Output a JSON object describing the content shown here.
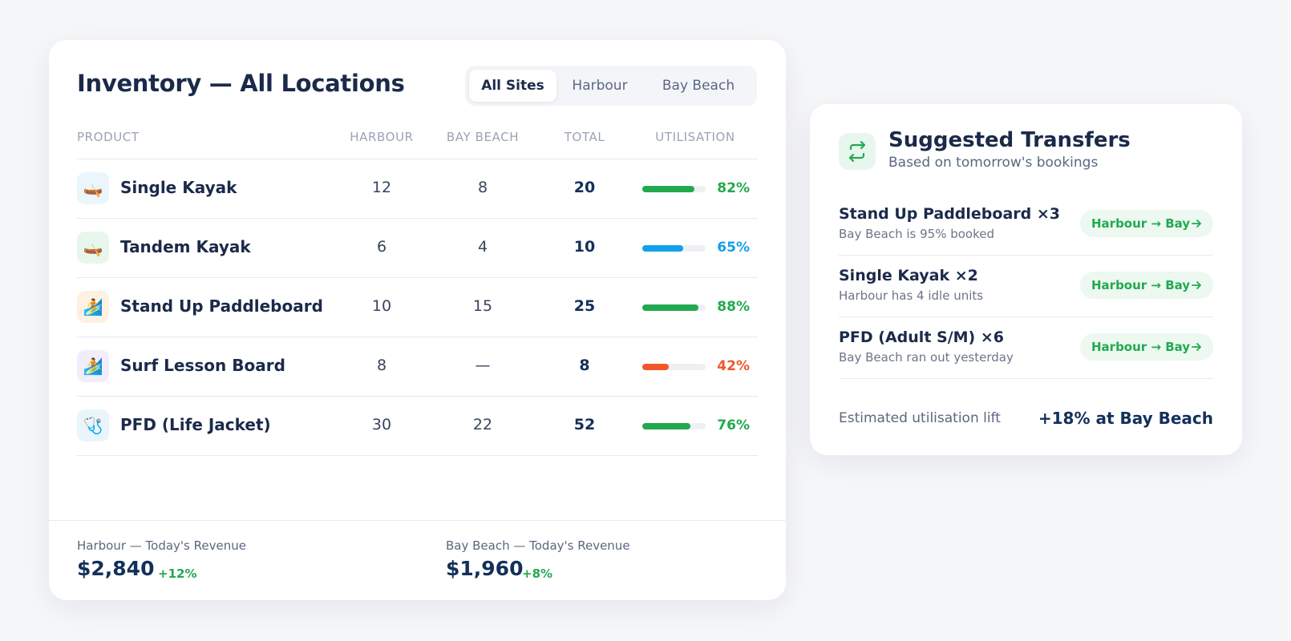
{
  "inventory": {
    "title": "Inventory — All Locations",
    "tabs": [
      "All Sites",
      "Harbour",
      "Bay Beach"
    ],
    "active_tab": 0,
    "columns": [
      "PRODUCT",
      "HARBOUR",
      "BAY BEACH",
      "TOTAL",
      "UTILISATION"
    ],
    "rows": [
      {
        "icon": "🛶",
        "icon_bg": "#eaf6fb",
        "product": "Single Kayak",
        "harbour": 12,
        "bay_beach": 8,
        "total": 20,
        "utilisation": 82,
        "utilisation_label": "82%",
        "color": "#22a94f"
      },
      {
        "icon": "🛶",
        "icon_bg": "#e8f7ee",
        "product": "Tandem Kayak",
        "harbour": 6,
        "bay_beach": 4,
        "total": 10,
        "utilisation": 65,
        "utilisation_label": "65%",
        "color": "#14a0e8"
      },
      {
        "icon": "🏄",
        "icon_bg": "#fdf1e3",
        "product": "Stand Up Paddleboard",
        "harbour": 10,
        "bay_beach": 15,
        "total": 25,
        "utilisation": 88,
        "utilisation_label": "88%",
        "color": "#22a94f"
      },
      {
        "icon": "🏄",
        "icon_bg": "#f1edfb",
        "product": "Surf Lesson Board",
        "harbour": 8,
        "bay_beach": "—",
        "total": 8,
        "utilisation": 42,
        "utilisation_label": "42%",
        "color": "#f0582a"
      },
      {
        "icon": "🩺",
        "icon_bg": "#eaf4fb",
        "product": "PFD (Life Jacket)",
        "harbour": 30,
        "bay_beach": 22,
        "total": 52,
        "utilisation": 76,
        "utilisation_label": "76%",
        "color": "#22a94f"
      }
    ],
    "revenue": [
      {
        "label": "Harbour — Today's Revenue",
        "value": "$2,840",
        "change": "+12%"
      },
      {
        "label": "Bay Beach — Today's Revenue",
        "value": "$1,960",
        "change": "+8%"
      }
    ]
  },
  "transfers": {
    "title": "Suggested Transfers",
    "subtitle": "Based on tomorrow's bookings",
    "items": [
      {
        "name": "Stand Up Paddleboard ×3",
        "reason": "Bay Beach is 95% booked",
        "action": "Harbour → Bay"
      },
      {
        "name": "Single Kayak ×2",
        "reason": "Harbour has 4 idle units",
        "action": "Harbour → Bay"
      },
      {
        "name": "PFD (Adult S/M) ×6",
        "reason": "Bay Beach ran out yesterday",
        "action": "Harbour → Bay"
      }
    ],
    "footer_label": "Estimated utilisation lift",
    "footer_value": "+18% at Bay Beach"
  }
}
